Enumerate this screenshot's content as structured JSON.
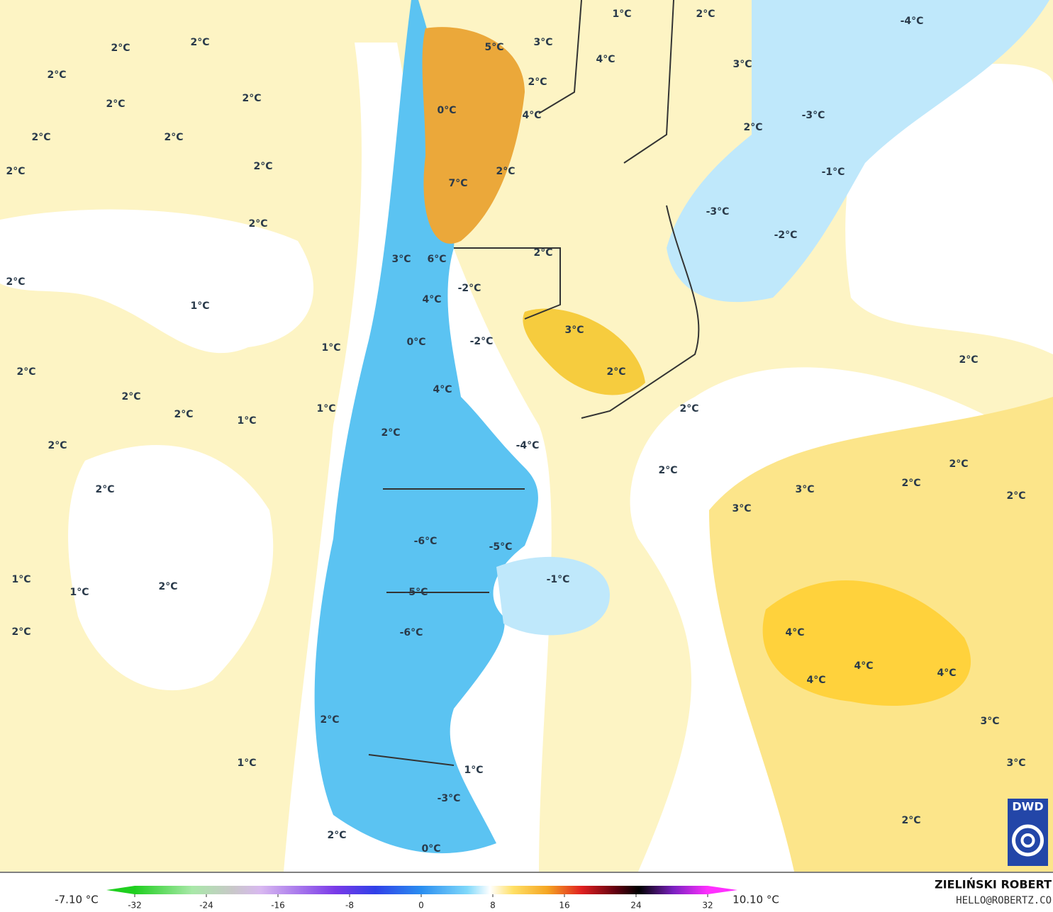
{
  "map": {
    "labels": [
      "2°C",
      "2°C",
      "2°C",
      "2°C",
      "2°C",
      "2°C",
      "2°C",
      "2°C",
      "2°C",
      "2°C",
      "2°C",
      "1°C",
      "1°C",
      "2°C",
      "2°C",
      "2°C",
      "1°C",
      "1°C",
      "2°C",
      "2°C",
      "1°C",
      "1°C",
      "2°C",
      "2°C",
      "1°C",
      "2°C",
      "5°C",
      "3°C",
      "1°C",
      "2°C",
      "-4°C",
      "4°C",
      "3°C",
      "2°C",
      "0°C",
      "4°C",
      "-3°C",
      "2°C",
      "7°C",
      "2°C",
      "-1°C",
      "-3°C",
      "-2°C",
      "2°C",
      "3°C",
      "6°C",
      "-2°C",
      "4°C",
      "3°C",
      "0°C",
      "-2°C",
      "2°C",
      "4°C",
      "2°C",
      "2°C",
      "-4°C",
      "2°C",
      "3°C",
      "3°C",
      "2°C",
      "2°C",
      "2°C",
      "2°C",
      "-6°C",
      "-5°C",
      "-1°C",
      "-5°C",
      "-6°C",
      "4°C",
      "4°C",
      "4°C",
      "4°C",
      "3°C",
      "3°C",
      "1°C",
      "2°C",
      "-3°C",
      "2°C",
      "0°C"
    ]
  },
  "colorbar": {
    "lim": [
      -32,
      32
    ],
    "ticks": [
      -32,
      -24,
      -16,
      -8,
      0,
      8,
      16,
      24,
      32
    ],
    "min_label": "-7.10 °C",
    "max_label": "10.10 °C"
  },
  "credits": {
    "author": "ZIELIŃSKI ROBERT",
    "email": "HELLO@ROBERTZ.CO",
    "logo": "DWD"
  }
}
